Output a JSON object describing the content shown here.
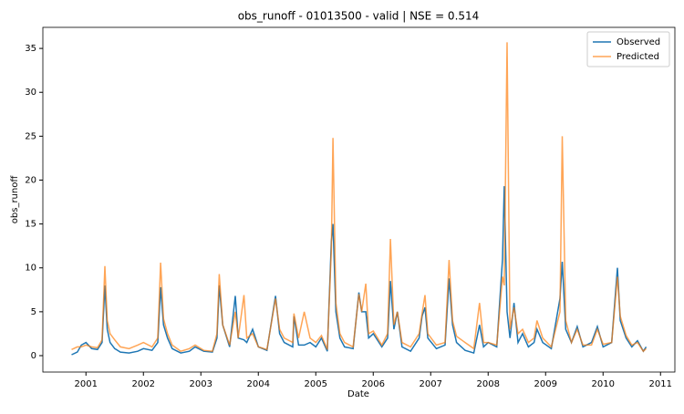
{
  "chart_data": {
    "type": "line",
    "title": "obs_runoff - 01013500 - valid | NSE = 0.514",
    "x_label": "Date",
    "y_label": "obs_runoff",
    "x": [
      2000.75,
      2000.85,
      2000.92,
      2001.0,
      2001.1,
      2001.2,
      2001.28,
      2001.33,
      2001.37,
      2001.42,
      2001.5,
      2001.6,
      2001.75,
      2001.9,
      2002.0,
      2002.15,
      2002.25,
      2002.3,
      2002.35,
      2002.42,
      2002.5,
      2002.65,
      2002.8,
      2002.9,
      2003.05,
      2003.2,
      2003.28,
      2003.32,
      2003.38,
      2003.5,
      2003.6,
      2003.65,
      2003.75,
      2003.8,
      2003.9,
      2004.0,
      2004.15,
      2004.3,
      2004.37,
      2004.45,
      2004.6,
      2004.62,
      2004.7,
      2004.8,
      2004.9,
      2005.0,
      2005.1,
      2005.2,
      2005.27,
      2005.3,
      2005.35,
      2005.42,
      2005.5,
      2005.65,
      2005.75,
      2005.8,
      2005.87,
      2005.92,
      2006.0,
      2006.15,
      2006.25,
      2006.3,
      2006.36,
      2006.42,
      2006.5,
      2006.65,
      2006.8,
      2006.85,
      2006.9,
      2006.95,
      2007.1,
      2007.25,
      2007.32,
      2007.38,
      2007.45,
      2007.6,
      2007.75,
      2007.85,
      2007.92,
      2008.0,
      2008.15,
      2008.25,
      2008.28,
      2008.33,
      2008.38,
      2008.45,
      2008.52,
      2008.6,
      2008.7,
      2008.8,
      2008.85,
      2008.95,
      2009.1,
      2009.25,
      2009.29,
      2009.35,
      2009.45,
      2009.55,
      2009.65,
      2009.8,
      2009.9,
      2010.0,
      2010.15,
      2010.25,
      2010.3,
      2010.4,
      2010.5,
      2010.6,
      2010.7,
      2010.75
    ],
    "series": [
      {
        "name": "Observed",
        "color": "#1f77b4",
        "values": [
          0.1,
          0.4,
          1.2,
          1.5,
          0.8,
          0.7,
          1.5,
          8.0,
          3.0,
          1.5,
          0.8,
          0.4,
          0.3,
          0.5,
          0.8,
          0.6,
          1.5,
          7.8,
          3.5,
          2.0,
          0.8,
          0.3,
          0.5,
          1.0,
          0.5,
          0.4,
          2.0,
          8.0,
          3.5,
          1.0,
          6.8,
          2.0,
          1.8,
          1.5,
          3.0,
          1.0,
          0.6,
          6.8,
          2.5,
          1.5,
          1.0,
          4.5,
          1.2,
          1.2,
          1.5,
          1.0,
          2.0,
          0.5,
          13.0,
          15.0,
          5.0,
          2.0,
          1.0,
          0.8,
          7.2,
          5.0,
          5.0,
          2.0,
          2.5,
          1.0,
          2.0,
          8.5,
          3.0,
          5.0,
          1.0,
          0.5,
          2.0,
          4.5,
          5.5,
          2.0,
          0.8,
          1.2,
          8.8,
          3.5,
          1.5,
          0.6,
          0.3,
          3.5,
          1.0,
          1.5,
          1.0,
          11.0,
          19.3,
          5.0,
          2.0,
          6.0,
          1.5,
          2.5,
          1.0,
          1.5,
          3.0,
          1.5,
          0.8,
          6.5,
          10.7,
          3.0,
          1.5,
          3.3,
          1.0,
          1.5,
          3.3,
          1.0,
          1.5,
          10.0,
          4.0,
          2.0,
          1.0,
          1.7,
          0.5,
          1.0
        ]
      },
      {
        "name": "Predicted",
        "color": "#ff7f0e",
        "values": [
          0.7,
          1.0,
          1.0,
          1.2,
          1.0,
          0.9,
          1.8,
          10.2,
          4.0,
          2.5,
          1.8,
          1.0,
          0.8,
          1.2,
          1.5,
          1.0,
          2.0,
          10.6,
          4.2,
          2.5,
          1.2,
          0.5,
          0.8,
          1.2,
          0.6,
          0.5,
          2.5,
          9.3,
          3.5,
          1.2,
          5.0,
          2.0,
          6.9,
          2.0,
          2.5,
          1.0,
          0.7,
          6.5,
          3.0,
          2.0,
          1.5,
          4.8,
          2.0,
          5.0,
          2.0,
          1.5,
          2.3,
          0.7,
          12.0,
          24.8,
          6.0,
          2.5,
          1.5,
          1.0,
          7.0,
          5.0,
          8.2,
          2.5,
          2.8,
          1.2,
          2.5,
          13.3,
          3.5,
          5.0,
          1.5,
          1.0,
          2.5,
          4.8,
          6.9,
          2.5,
          1.2,
          1.5,
          10.9,
          4.0,
          2.2,
          1.5,
          0.8,
          6.0,
          1.5,
          1.5,
          1.2,
          9.0,
          8.0,
          35.7,
          3.0,
          5.5,
          2.5,
          3.0,
          1.5,
          2.0,
          4.0,
          2.0,
          1.0,
          5.0,
          25.0,
          4.0,
          1.5,
          3.0,
          1.2,
          1.2,
          3.0,
          1.3,
          1.5,
          9.0,
          4.5,
          2.3,
          1.2,
          1.5,
          0.5,
          0.8
        ]
      }
    ],
    "xlim": [
      2000.25,
      2011.25
    ],
    "xticks": [
      2001,
      2002,
      2003,
      2004,
      2005,
      2006,
      2007,
      2008,
      2009,
      2010,
      2011
    ],
    "ylim": [
      -1.87,
      37.4
    ],
    "yticks": [
      0,
      5,
      10,
      15,
      20,
      25,
      30,
      35
    ],
    "legend": "upper right"
  }
}
